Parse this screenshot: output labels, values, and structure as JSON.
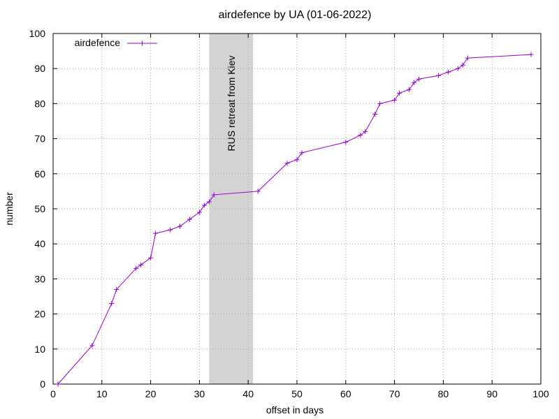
{
  "chart_data": {
    "type": "line",
    "title": "airdefence by UA (01-06-2022)",
    "xlabel": "offset in days",
    "ylabel": "number",
    "xlim": [
      0,
      100
    ],
    "ylim": [
      0,
      100
    ],
    "xticks": [
      0,
      10,
      20,
      30,
      40,
      50,
      60,
      70,
      80,
      90,
      100
    ],
    "yticks": [
      0,
      10,
      20,
      30,
      40,
      50,
      60,
      70,
      80,
      90,
      100
    ],
    "grid": true,
    "legend_position": "top-left",
    "series": [
      {
        "name": "airdefence",
        "color": "#9400d3",
        "marker": "plus",
        "x": [
          1,
          8,
          12,
          13,
          17,
          18,
          20,
          21,
          24,
          26,
          28,
          30,
          31,
          32,
          33,
          42,
          48,
          50,
          51,
          60,
          63,
          64,
          66,
          67,
          70,
          71,
          73,
          74,
          75,
          79,
          81,
          83,
          84,
          85,
          98
        ],
        "y": [
          0,
          11,
          23,
          27,
          33,
          34,
          36,
          43,
          44,
          45,
          47,
          49,
          51,
          52,
          54,
          55,
          63,
          64,
          66,
          69,
          71,
          72,
          77,
          80,
          81,
          83,
          84,
          86,
          87,
          88,
          89,
          90,
          91,
          93,
          94
        ]
      }
    ],
    "annotations": [
      {
        "type": "shaded_band",
        "x_range": [
          32,
          41
        ],
        "label": "RUS retreat from Kiev",
        "color": "#d3d3d3"
      }
    ]
  }
}
